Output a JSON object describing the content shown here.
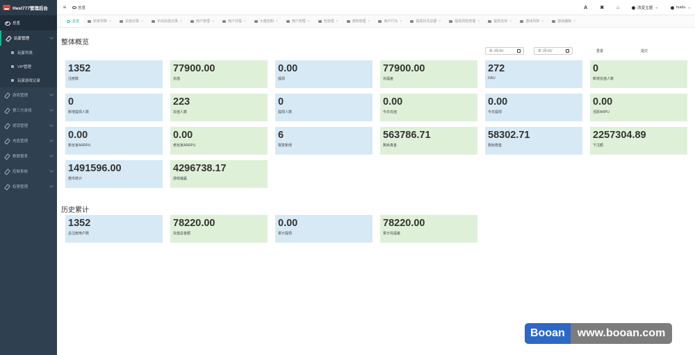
{
  "app": {
    "brand": "Hest777管理后台"
  },
  "sidebar": {
    "home": "总览",
    "groups": [
      {
        "label": "玩家管理",
        "subs": [
          "玩家列表",
          "VIP管理",
          "玩家游戏记录"
        ]
      },
      {
        "label": "游戏管理"
      },
      {
        "label": "第三方游戏"
      },
      {
        "label": "提现管理"
      },
      {
        "label": "充值管理"
      },
      {
        "label": "数据报表"
      },
      {
        "label": "控制系统"
      },
      {
        "label": "权限管理"
      }
    ]
  },
  "topbar": {
    "breadcrumb": "总览",
    "font_btn": "A",
    "expand_btn": "✖",
    "home_btn": "⌂",
    "theme": "改变主题",
    "user": "huidu"
  },
  "tabs": [
    "总览",
    "玩家列表",
    "充值记录",
    "手动充值记录",
    "用户管理",
    "用户日程",
    "大盘控制",
    "用户管理",
    "包管理",
    "通知管理",
    "用户行为",
    "提现状况总额",
    "提现风险管理",
    "提现任务",
    "游戏列表",
    "游戏编辑"
  ],
  "filters": {
    "date_placeholder": "年 /月/日/",
    "reset": "重置",
    "submit": "提交"
  },
  "overview": {
    "title": "整体概览",
    "cards": [
      {
        "value": "1352",
        "label": "注册数",
        "color": "blue"
      },
      {
        "value": "77900.00",
        "label": "充值",
        "color": "green"
      },
      {
        "value": "0.00",
        "label": "提现",
        "color": "blue"
      },
      {
        "value": "77900.00",
        "label": "充提差",
        "color": "green"
      },
      {
        "value": "272",
        "label": "DAU",
        "color": "blue"
      },
      {
        "value": "0",
        "label": "新增充值人数",
        "color": "green"
      },
      {
        "value": "0",
        "label": "新增提现人数",
        "color": "blue"
      },
      {
        "value": "223",
        "label": "充值人数",
        "color": "green"
      },
      {
        "value": "0",
        "label": "提现人数",
        "color": "blue"
      },
      {
        "value": "0.00",
        "label": "今日充值",
        "color": "green"
      },
      {
        "value": "0.00",
        "label": "今日提现",
        "color": "blue"
      },
      {
        "value": "0.00",
        "label": "活跃ARPU",
        "color": "green"
      },
      {
        "value": "0.00",
        "label": "新玩家ARRPU",
        "color": "blue"
      },
      {
        "value": "0.00",
        "label": "老玩家ARRPU",
        "color": "green"
      },
      {
        "value": "6",
        "label": "裂变新增",
        "color": "blue"
      },
      {
        "value": "563786.71",
        "label": "剩余真金",
        "color": "green"
      },
      {
        "value": "58302.71",
        "label": "剩余赠金",
        "color": "blue"
      },
      {
        "value": "2257304.89",
        "label": "下注额",
        "color": "green"
      },
      {
        "value": "1491596.00",
        "label": "赠币统计",
        "color": "blue"
      },
      {
        "value": "4296738.17",
        "label": "游戏输赢",
        "color": "green"
      }
    ]
  },
  "history": {
    "title": "历史累计",
    "cards": [
      {
        "value": "1352",
        "label": "总注册用户数",
        "color": "blue"
      },
      {
        "value": "78220.00",
        "label": "充值总金额",
        "color": "green"
      },
      {
        "value": "0.00",
        "label": "累计提现",
        "color": "blue"
      },
      {
        "value": "78220.00",
        "label": "累计充提差",
        "color": "green"
      }
    ]
  },
  "watermark": {
    "left": "Booan",
    "right": "www.booan.com"
  }
}
